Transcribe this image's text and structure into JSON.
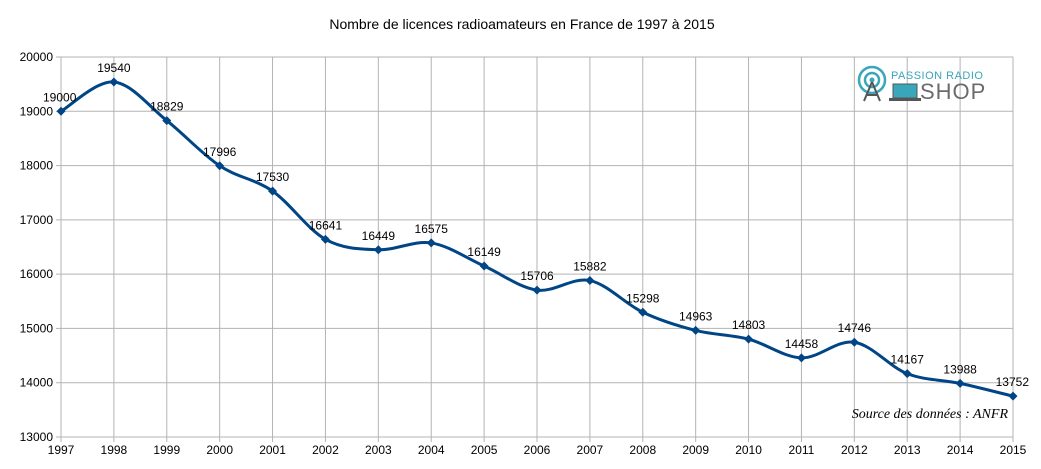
{
  "chart_data": {
    "type": "line",
    "title": "Nombre de licences radioamateurs en France de 1997 à 2015",
    "categories": [
      "1997",
      "1998",
      "1999",
      "2000",
      "2001",
      "2002",
      "2003",
      "2004",
      "2005",
      "2006",
      "2007",
      "2008",
      "2009",
      "2010",
      "2011",
      "2012",
      "2013",
      "2014",
      "2015"
    ],
    "values": [
      19000,
      19540,
      18829,
      17996,
      17530,
      16641,
      16449,
      16575,
      16149,
      15706,
      15882,
      15298,
      14963,
      14803,
      14458,
      14746,
      14167,
      13988,
      13752
    ],
    "ylim": [
      13000,
      20000
    ],
    "yticks": [
      13000,
      14000,
      15000,
      16000,
      17000,
      18000,
      19000,
      20000
    ],
    "grid": true,
    "line_color": "#004586",
    "source": "Source des données : ANFR",
    "logo": {
      "top": "PASSION RADIO",
      "bottom": "SHOP"
    }
  }
}
